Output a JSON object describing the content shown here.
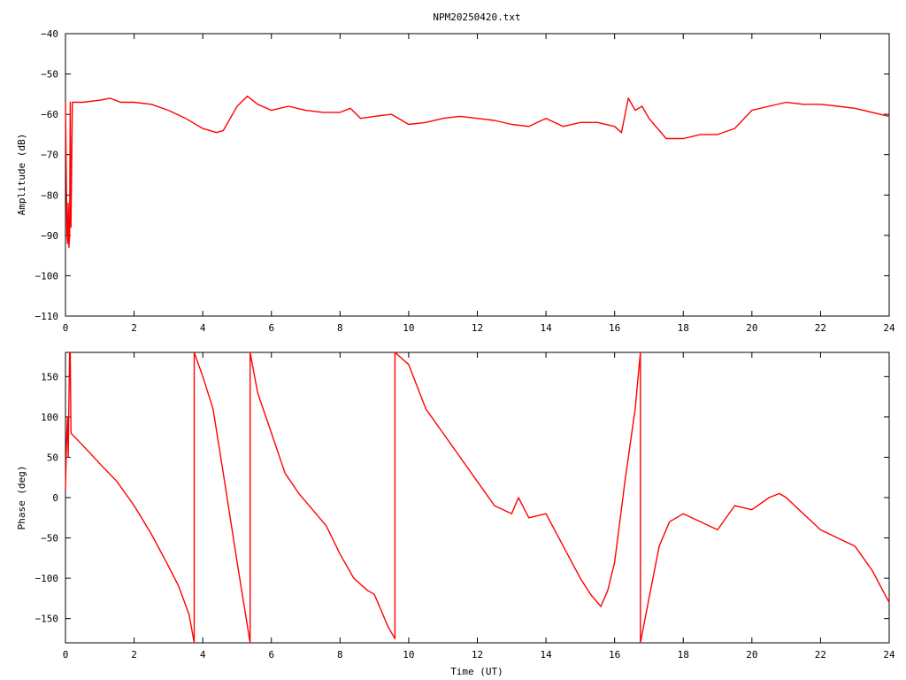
{
  "title": "NPM20250420.txt",
  "xlabel": "Time (UT)",
  "trace_color": "#ff0000",
  "chart_data": [
    {
      "type": "line",
      "ylabel": "Amplitude (dB)",
      "xlim": [
        0,
        24
      ],
      "ylim": [
        -110,
        -40
      ],
      "xticks": [
        0,
        2,
        4,
        6,
        8,
        10,
        12,
        14,
        16,
        18,
        20,
        22,
        24
      ],
      "yticks": [
        -110,
        -100,
        -90,
        -80,
        -70,
        -60,
        -50,
        -40
      ],
      "series": [
        {
          "x": [
            0,
            0.04,
            0.06,
            0.08,
            0.1,
            0.12,
            0.14,
            0.16,
            0.2,
            0.5,
            1.0,
            1.3,
            1.6,
            2.0,
            2.5,
            3.0,
            3.5,
            4.0,
            4.4,
            4.6,
            5.0,
            5.3,
            5.6,
            6.0,
            6.5,
            7.0,
            7.5,
            8.0,
            8.3,
            8.6,
            9.0,
            9.5,
            10.0,
            10.5,
            11.0,
            11.5,
            12.0,
            12.5,
            13.0,
            13.5,
            14.0,
            14.5,
            15.0,
            15.5,
            16.0,
            16.2,
            16.4,
            16.6,
            16.8,
            17.0,
            17.5,
            18.0,
            18.5,
            19.0,
            19.5,
            20.0,
            20.5,
            21.0,
            21.5,
            22.0,
            22.5,
            23.0,
            23.5,
            24.0
          ],
          "y": [
            -57,
            -89,
            -92,
            -82,
            -93,
            -90,
            -57,
            -88,
            -57,
            -57,
            -56.5,
            -56,
            -57,
            -57,
            -57.5,
            -59,
            -61,
            -63.5,
            -64.5,
            -64,
            -58,
            -55.5,
            -57.5,
            -59,
            -58,
            -59,
            -59.5,
            -59.5,
            -58.5,
            -61,
            -60.5,
            -60,
            -62.5,
            -62,
            -61,
            -60.5,
            -61,
            -61.5,
            -62.5,
            -63,
            -61,
            -63,
            -62,
            -62,
            -63,
            -64.5,
            -56,
            -59,
            -58,
            -61,
            -66,
            -66,
            -65,
            -65,
            -63.5,
            -59,
            -58,
            -57,
            -57.5,
            -57.5,
            -58,
            -58.5,
            -59.5,
            -60.5
          ]
        }
      ]
    },
    {
      "type": "line",
      "ylabel": "Phase (deg)",
      "xlim": [
        0,
        24
      ],
      "ylim": [
        -180,
        180
      ],
      "xticks": [
        0,
        2,
        4,
        6,
        8,
        10,
        12,
        14,
        16,
        18,
        20,
        22,
        24
      ],
      "yticks": [
        -150,
        -100,
        -50,
        0,
        50,
        100,
        150
      ],
      "series": [
        {
          "x": [
            0,
            0.03,
            0.06,
            0.08,
            0.1,
            0.12,
            0.14,
            0.16,
            0.5,
            1.0,
            1.5,
            2.0,
            2.5,
            3.0,
            3.3,
            3.6,
            3.75,
            3.75,
            4.0,
            4.3,
            4.6,
            5.0,
            5.38,
            5.38,
            5.6,
            6.0,
            6.4,
            6.8,
            7.2,
            7.6,
            8.0,
            8.4,
            8.8,
            9.0,
            9.2,
            9.4,
            9.6,
            9.6,
            10.0,
            10.5,
            11.0,
            11.5,
            12.0,
            12.5,
            13.0,
            13.2,
            13.5,
            14.0,
            14.5,
            15.0,
            15.3,
            15.6,
            15.8,
            16.0,
            16.3,
            16.6,
            16.75,
            16.75,
            17.0,
            17.3,
            17.6,
            18.0,
            18.5,
            19.0,
            19.5,
            20.0,
            20.5,
            20.8,
            21.0,
            21.5,
            22.0,
            22.5,
            23.0,
            23.5,
            24.0
          ],
          "y": [
            10,
            70,
            100,
            50,
            120,
            180,
            180,
            80,
            65,
            42,
            20,
            -10,
            -45,
            -85,
            -110,
            -145,
            -180,
            180,
            150,
            110,
            30,
            -80,
            -180,
            180,
            130,
            80,
            30,
            5,
            -15,
            -35,
            -70,
            -100,
            -115,
            -120,
            -140,
            -160,
            -175,
            180,
            165,
            110,
            80,
            50,
            20,
            -10,
            -20,
            0,
            -25,
            -20,
            -60,
            -100,
            -120,
            -135,
            -115,
            -80,
            20,
            110,
            180,
            -180,
            -125,
            -60,
            -30,
            -20,
            -30,
            -40,
            -10,
            -15,
            0,
            5,
            0,
            -20,
            -40,
            -50,
            -60,
            -90,
            -130
          ]
        }
      ]
    }
  ]
}
